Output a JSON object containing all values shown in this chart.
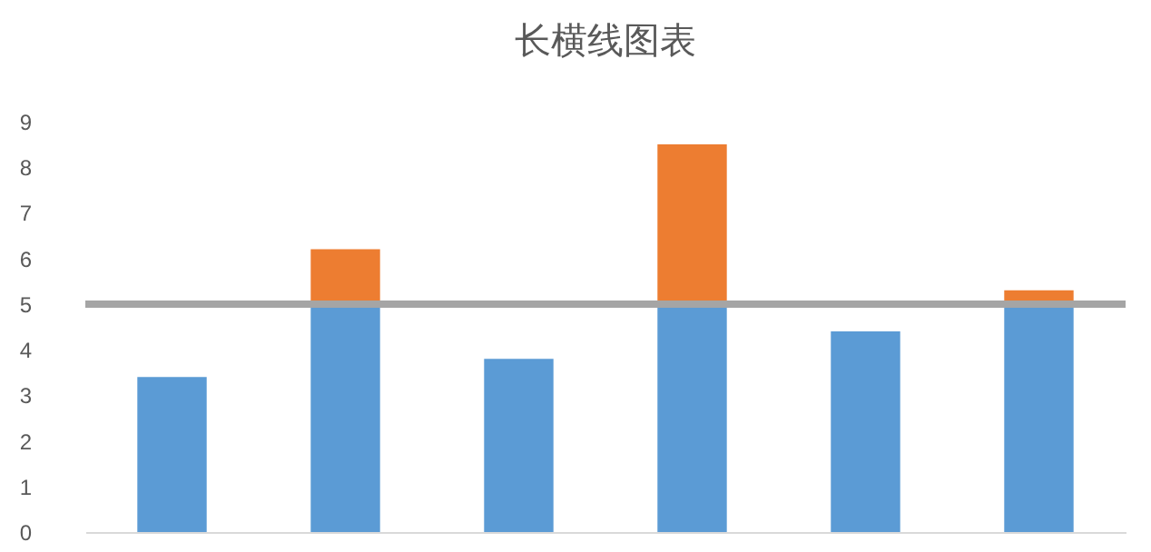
{
  "chart_data": {
    "type": "bar",
    "title": "长横线图表",
    "categories": [
      null,
      null,
      null,
      null,
      null,
      null
    ],
    "stacked": true,
    "series": [
      {
        "color": "#5b9bd5",
        "values": [
          3.4,
          5,
          3.8,
          5,
          4.4,
          5
        ]
      },
      {
        "color": "#ed7d31",
        "values": [
          null,
          1.2,
          null,
          3.5,
          null,
          0.3
        ]
      }
    ],
    "ylim": [
      0,
      9
    ],
    "yticks": [
      0,
      1,
      2,
      3,
      4,
      5,
      6,
      7,
      8,
      9
    ],
    "grid": false,
    "legend": false,
    "ref_lines": [
      {
        "axis": "y",
        "value": 5,
        "color": "#a5a5a5"
      }
    ]
  }
}
